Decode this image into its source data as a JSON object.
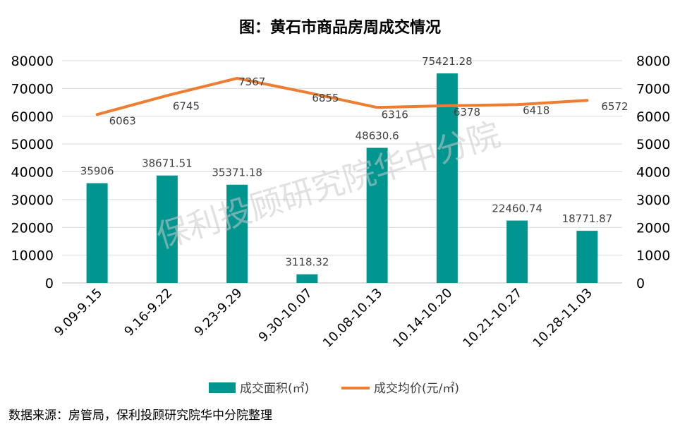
{
  "chart_data": {
    "type": "bar",
    "title": "图：黄石市商品房周成交情况",
    "categories": [
      "9.09-9.15",
      "9.16-9.22",
      "9.23-9.29",
      "9.30-10.07",
      "10.08-10.13",
      "10.14-10.20",
      "10.21-10.27",
      "10.28-11.03"
    ],
    "series": [
      {
        "name": "成交面积(㎡)",
        "type": "bar",
        "axis": "left",
        "color": "#00958F",
        "values": [
          35906,
          38671.51,
          35371.18,
          3118.32,
          48630.6,
          75421.28,
          22460.74,
          18771.87
        ],
        "labels": [
          "35906",
          "38671.51",
          "35371.18",
          "3118.32",
          "48630.6",
          "75421.28",
          "22460.74",
          "18771.87"
        ]
      },
      {
        "name": "成交均价(元/㎡)",
        "type": "line",
        "axis": "right",
        "color": "#ED7D31",
        "values": [
          6063,
          6745,
          7367,
          6855,
          6316,
          6378,
          6418,
          6572
        ],
        "labels": [
          "6063",
          "6745",
          "7367",
          "6855",
          "6316",
          "6378",
          "6418",
          "6572"
        ]
      }
    ],
    "y_left": {
      "ylim": [
        0,
        80000
      ],
      "ticks": [
        "0",
        "10000",
        "20000",
        "30000",
        "40000",
        "50000",
        "60000",
        "70000",
        "80000"
      ]
    },
    "y_right": {
      "ylim": [
        0,
        8000
      ],
      "ticks": [
        "0",
        "1000",
        "2000",
        "3000",
        "4000",
        "5000",
        "6000",
        "7000",
        "8000"
      ]
    },
    "grid": true,
    "legend": "bottom"
  },
  "watermark": "保利投顾研究院华中分院",
  "source": "数据来源：房管局，保利投顾研究院华中分院整理"
}
